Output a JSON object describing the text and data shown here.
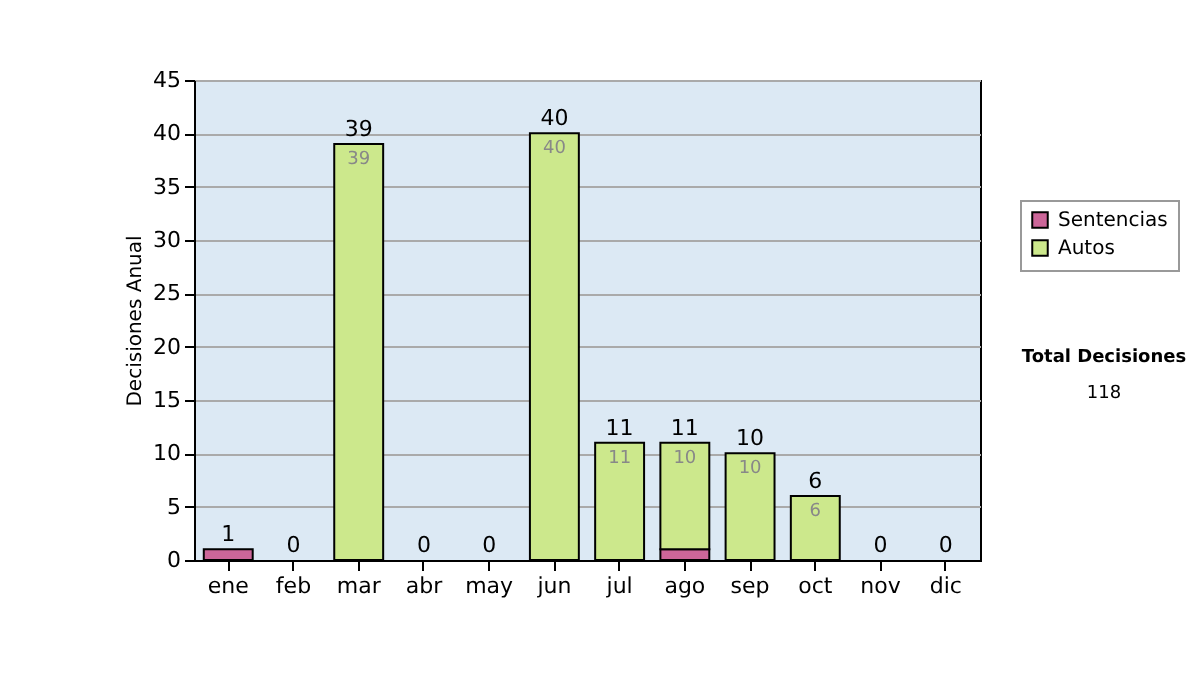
{
  "chart_data": {
    "type": "bar",
    "ylabel": "Decisiones Anual",
    "categories": [
      "ene",
      "feb",
      "mar",
      "abr",
      "may",
      "jun",
      "jul",
      "ago",
      "sep",
      "oct",
      "nov",
      "dic"
    ],
    "series": [
      {
        "name": "Sentencias",
        "color": "#cc6699",
        "values": [
          1,
          0,
          0,
          0,
          0,
          0,
          0,
          1,
          0,
          0,
          0,
          0
        ]
      },
      {
        "name": "Autos",
        "color": "#cce88c",
        "values": [
          0,
          0,
          39,
          0,
          0,
          40,
          11,
          10,
          10,
          6,
          0,
          0
        ],
        "value_labels": [
          null,
          null,
          "39",
          null,
          null,
          "40",
          "11",
          "10",
          "10",
          "6",
          null,
          null
        ]
      }
    ],
    "stacked": true,
    "totals": [
      "1",
      "0",
      "39",
      "0",
      "0",
      "40",
      "11",
      "11",
      "10",
      "6",
      "0",
      "0"
    ],
    "ylim": [
      0,
      45
    ],
    "yticks": [
      0,
      5,
      10,
      15,
      20,
      25,
      30,
      35,
      40,
      45
    ],
    "grid": "y",
    "legend": "right",
    "annotations": [
      "Total Decisiones",
      "118"
    ]
  }
}
